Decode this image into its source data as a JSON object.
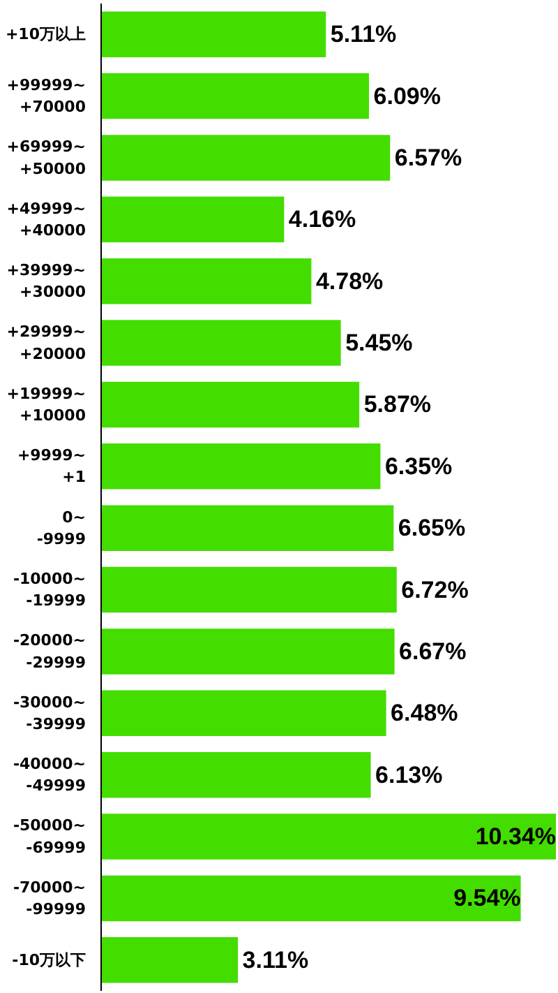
{
  "chart_data": {
    "type": "bar",
    "orientation": "horizontal",
    "color": "#44dd00",
    "categories": [
      "+10万以上",
      "+99999~\n+70000",
      "+69999~\n+50000",
      "+49999~\n+40000",
      "+39999~\n+30000",
      "+29999~\n+20000",
      "+19999~\n+10000",
      "+9999~\n+1",
      "0~\n-9999",
      "-10000~\n-19999",
      "-20000~\n-29999",
      "-30000~\n-39999",
      "-40000~\n-49999",
      "-50000~\n-69999",
      "-70000~\n-99999",
      "-10万以下"
    ],
    "values": [
      5.11,
      6.09,
      6.57,
      4.16,
      4.78,
      5.45,
      5.87,
      6.35,
      6.65,
      6.72,
      6.67,
      6.48,
      6.13,
      10.34,
      9.54,
      3.11
    ],
    "value_labels": [
      "5.11%",
      "6.09%",
      "6.57%",
      "4.16%",
      "4.78%",
      "5.45%",
      "5.87%",
      "6.35%",
      "6.65%",
      "6.72%",
      "6.67%",
      "6.48%",
      "6.13%",
      "10.34%",
      "9.54%",
      "3.11%"
    ],
    "grid": false
  }
}
